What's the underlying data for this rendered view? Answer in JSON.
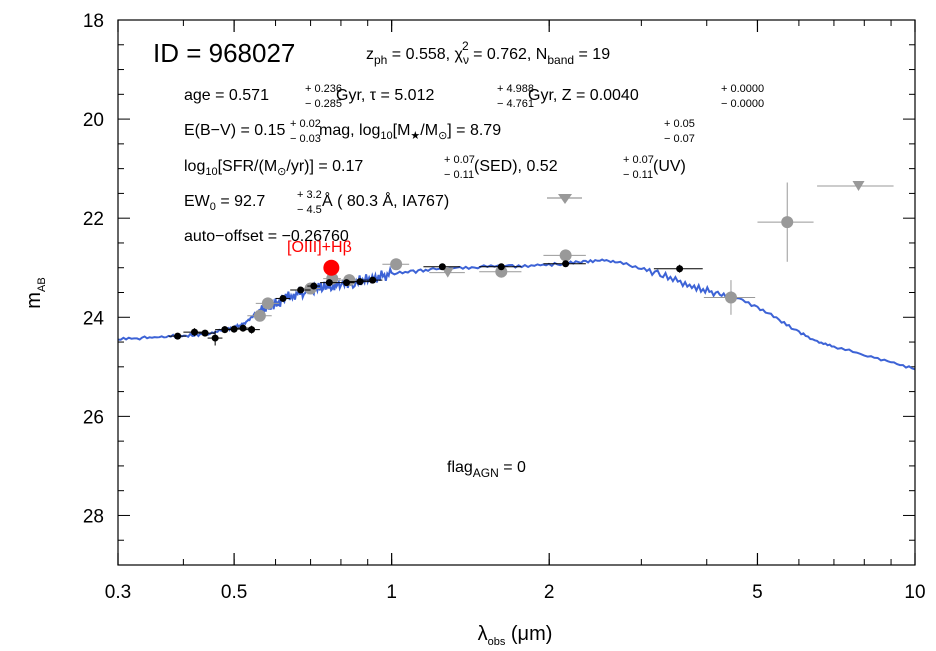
{
  "colors": {
    "model": "#3d63d6",
    "detected": "#000000",
    "gray": "#999999",
    "highlight": "#ff0000"
  },
  "chart_data": {
    "type": "scatter",
    "x_scale": "log",
    "y_inverted": true,
    "xlim": [
      0.3,
      10
    ],
    "ylim": [
      29,
      18
    ],
    "x_ticks": [
      {
        "v": 0.3,
        "label": "0.3"
      },
      {
        "v": 0.5,
        "label": "0.5"
      },
      {
        "v": 1,
        "label": "1"
      },
      {
        "v": 2,
        "label": "2"
      },
      {
        "v": 5,
        "label": "5"
      },
      {
        "v": 10,
        "label": "10"
      }
    ],
    "y_ticks": [
      {
        "v": 18,
        "label": "18"
      },
      {
        "v": 20,
        "label": "20"
      },
      {
        "v": 22,
        "label": "22"
      },
      {
        "v": 24,
        "label": "24"
      },
      {
        "v": 26,
        "label": "26"
      },
      {
        "v": 28,
        "label": "28"
      }
    ],
    "xlabel": {
      "main": "λ",
      "sub": "obs",
      "rest": " (μm)"
    },
    "ylabel": {
      "main": "m",
      "sub": "AB"
    },
    "annotations": {
      "id": "ID = 968027",
      "zph_label": "z",
      "zph_sub": "ph",
      "zph_value": " =  0.558,  ",
      "chi_label": "χ",
      "chi_sub": "ν",
      "chi_sup": "2",
      "chi_value": " =   0.762,  ",
      "nband_label": "N",
      "nband_sub": "band",
      "nband_value": " = 19",
      "age_label": "age =  0.571",
      "age_plus": "+  0.236",
      "age_minus": "−  0.285",
      "age_unit": " Gyr,  τ =  5.012",
      "tau_plus": "+  4.988",
      "tau_minus": "−  4.761",
      "tau_unit": " Gyr,  Z = 0.0040",
      "z_plus": "+ 0.0000",
      "z_minus": "− 0.0000",
      "ebv_label": "E(B−V) =  0.15",
      "ebv_plus": "+  0.02",
      "ebv_minus": "−  0.03",
      "mass_label": " mag,  log",
      "mass_sub10": "10",
      "mass_bracket": "[M",
      "mass_star": "★",
      "mass_slash": "/M",
      "mass_sun": "⊙",
      "mass_value": "] =  8.79",
      "mass_plus": "+  0.05",
      "mass_minus": "−  0.07",
      "sfr_label": "log",
      "sfr_sub10": "10",
      "sfr_body": "[SFR/(M",
      "sfr_sun": "⊙",
      "sfr_rest": "/yr)] =  0.17",
      "sfr_plus": "+  0.07",
      "sfr_minus": "−  0.11",
      "sfr_sed": " (SED),   0.52",
      "uv_plus": "+  0.07",
      "uv_minus": "−  0.11",
      "uv_label": " (UV)",
      "ew_label": "EW",
      "ew_sub": "0",
      "ew_value": " =  92.7",
      "ew_plus": "+  3.2",
      "ew_minus": "−  4.5",
      "ew_rest": " Å ( 80.3 Å, IA767)",
      "offset": "auto−offset =  −0.26760",
      "oiii": "[OIII]+Hβ",
      "agn_label": "flag",
      "agn_sub": "AGN",
      "agn_value": " = 0"
    },
    "series": [
      {
        "kind": "model",
        "points": [
          [
            0.3,
            24.45
          ],
          [
            0.33,
            24.42
          ],
          [
            0.36,
            24.4
          ],
          [
            0.39,
            24.38
          ],
          [
            0.42,
            24.36
          ],
          [
            0.45,
            24.32
          ],
          [
            0.48,
            24.25
          ],
          [
            0.5,
            24.2
          ],
          [
            0.52,
            24.15
          ],
          [
            0.54,
            24.0
          ],
          [
            0.56,
            23.85
          ],
          [
            0.58,
            23.78
          ],
          [
            0.6,
            23.72
          ],
          [
            0.62,
            23.65
          ],
          [
            0.65,
            23.55
          ],
          [
            0.68,
            23.48
          ],
          [
            0.71,
            23.42
          ],
          [
            0.74,
            23.38
          ],
          [
            0.77,
            23.35
          ],
          [
            0.8,
            23.32
          ],
          [
            0.85,
            23.28
          ],
          [
            0.9,
            23.22
          ],
          [
            0.95,
            23.18
          ],
          [
            1.0,
            23.12
          ],
          [
            1.1,
            23.08
          ],
          [
            1.2,
            23.03
          ],
          [
            1.35,
            23.0
          ],
          [
            1.5,
            22.98
          ],
          [
            1.7,
            22.97
          ],
          [
            1.9,
            22.95
          ],
          [
            2.1,
            22.92
          ],
          [
            2.3,
            22.88
          ],
          [
            2.5,
            22.85
          ],
          [
            2.7,
            22.88
          ],
          [
            3.0,
            23.02
          ],
          [
            3.3,
            23.15
          ],
          [
            3.6,
            23.3
          ],
          [
            3.9,
            23.42
          ],
          [
            4.2,
            23.52
          ],
          [
            4.5,
            23.58
          ],
          [
            5.0,
            23.8
          ],
          [
            5.5,
            24.05
          ],
          [
            6.0,
            24.3
          ],
          [
            6.5,
            24.5
          ],
          [
            7.0,
            24.6
          ],
          [
            8.0,
            24.75
          ],
          [
            9.0,
            24.9
          ],
          [
            10.0,
            25.05
          ]
        ]
      },
      {
        "kind": "detected",
        "name": "",
        "points": [
          {
            "x": 0.39,
            "y": 24.38,
            "xerr": 0.015,
            "yerr": 0.05
          },
          {
            "x": 0.42,
            "y": 24.3,
            "xerr": 0.02,
            "yerr": 0.08
          },
          {
            "x": 0.44,
            "y": 24.32,
            "xerr": 0.02,
            "yerr": 0.06
          },
          {
            "x": 0.46,
            "y": 24.42,
            "xerr": 0.015,
            "yerr": 0.15
          },
          {
            "x": 0.48,
            "y": 24.25,
            "xerr": 0.02,
            "yerr": 0.07
          },
          {
            "x": 0.5,
            "y": 24.24,
            "xerr": 0.02,
            "yerr": 0.07
          },
          {
            "x": 0.52,
            "y": 24.22,
            "xerr": 0.02,
            "yerr": 0.07
          },
          {
            "x": 0.54,
            "y": 24.25,
            "xerr": 0.02,
            "yerr": 0.08
          },
          {
            "x": 0.62,
            "y": 23.62,
            "xerr": 0.02,
            "yerr": 0.06
          },
          {
            "x": 0.67,
            "y": 23.45,
            "xerr": 0.03,
            "yerr": 0.05
          },
          {
            "x": 0.71,
            "y": 23.37,
            "xerr": 0.02,
            "yerr": 0.05
          },
          {
            "x": 0.76,
            "y": 23.3,
            "xerr": 0.03,
            "yerr": 0.05
          },
          {
            "x": 0.82,
            "y": 23.3,
            "xerr": 0.03,
            "yerr": 0.05
          },
          {
            "x": 0.87,
            "y": 23.28,
            "xerr": 0.04,
            "yerr": 0.05
          },
          {
            "x": 0.92,
            "y": 23.25,
            "xerr": 0.04,
            "yerr": 0.05
          },
          {
            "x": 1.25,
            "y": 22.98,
            "xerr": 0.1,
            "yerr": 0.05
          },
          {
            "x": 1.62,
            "y": 22.98,
            "xerr": 0.15,
            "yerr": 0.05
          },
          {
            "x": 2.15,
            "y": 22.92,
            "xerr": 0.2,
            "yerr": 0.05
          },
          {
            "x": 3.55,
            "y": 23.02,
            "xerr": 0.38,
            "yerr": 0.08
          }
        ]
      },
      {
        "kind": "gray",
        "name": "",
        "points": [
          {
            "x": 0.56,
            "y": 23.97,
            "xerr": 0.03,
            "yerr": 0.08
          },
          {
            "x": 0.58,
            "y": 23.72,
            "xerr": 0.03,
            "yerr": 0.08
          },
          {
            "x": 0.7,
            "y": 23.42,
            "xerr": 0.03,
            "yerr": 0.06
          },
          {
            "x": 0.77,
            "y": 23.22,
            "xerr": 0.03,
            "yerr": 0.05
          },
          {
            "x": 0.83,
            "y": 23.25,
            "xerr": 0.04,
            "yerr": 0.05
          },
          {
            "x": 1.02,
            "y": 22.93,
            "xerr": 0.06,
            "yerr": 0.05
          },
          {
            "x": 1.62,
            "y": 23.08,
            "xerr": 0.15,
            "yerr": 0.05
          },
          {
            "x": 2.15,
            "y": 22.75,
            "xerr": 0.2,
            "yerr": 0.06
          },
          {
            "x": 4.45,
            "y": 23.6,
            "xerr": 0.5,
            "yerr": 0.35
          },
          {
            "x": 5.7,
            "y": 22.08,
            "xerr": 0.7,
            "yerr": 0.8
          }
        ]
      },
      {
        "kind": "upper_limit",
        "name": "",
        "points": [
          {
            "x": 1.28,
            "y": 23.1,
            "xerr": 0.1
          },
          {
            "x": 7.8,
            "y": 21.35,
            "xerr": 1.3
          }
        ]
      },
      {
        "kind": "highlight",
        "name": "[OIII]+Hβ",
        "points": [
          {
            "x": 0.767,
            "y": 23.0
          }
        ]
      }
    ]
  }
}
